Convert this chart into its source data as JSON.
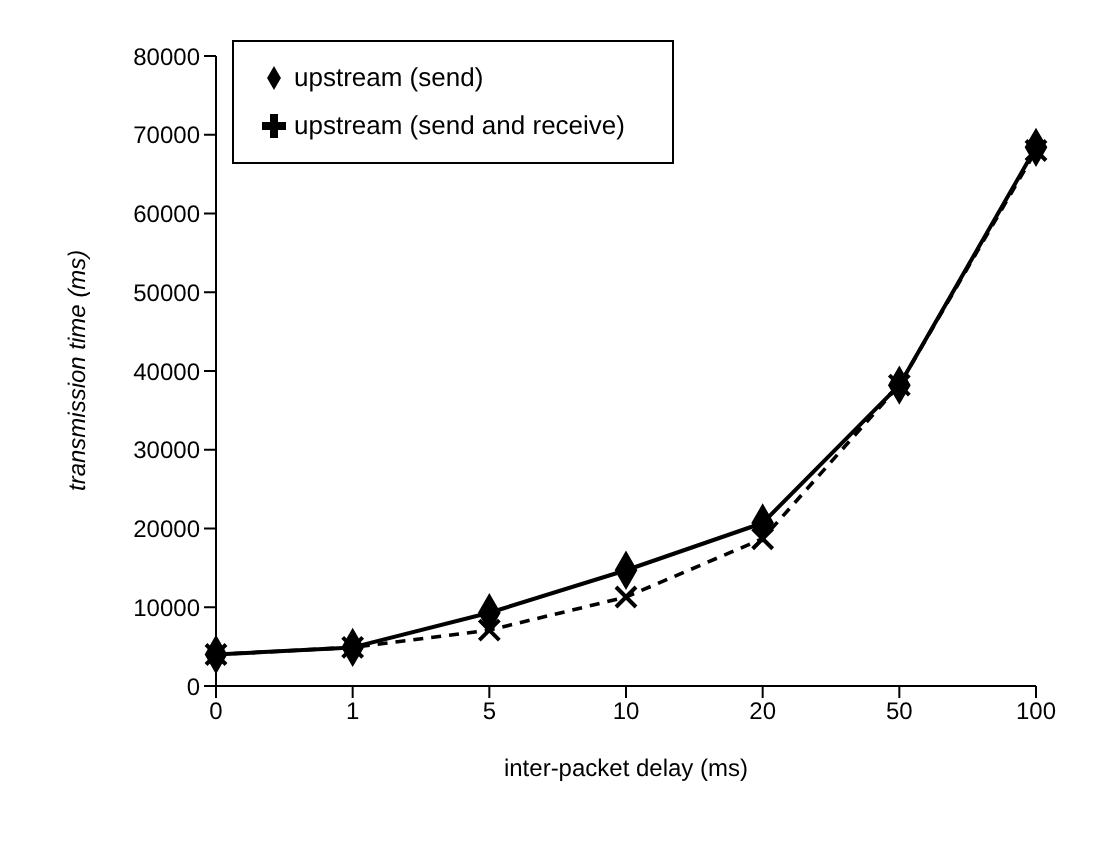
{
  "chart_data": {
    "type": "line",
    "xlabel": "inter-packet delay (ms)",
    "ylabel": "transmission time (ms)",
    "categories": [
      "0",
      "1",
      "5",
      "10",
      "20",
      "50",
      "100"
    ],
    "ylim": [
      0,
      80000
    ],
    "yticks": [
      0,
      10000,
      20000,
      30000,
      40000,
      50000,
      60000,
      70000,
      80000
    ],
    "grid": false,
    "legend": "top left",
    "series": [
      {
        "name": "upstream (send)",
        "color": "#000000",
        "marker": "diamond",
        "line_style": "solid",
        "values": [
          4000,
          4900,
          9300,
          14700,
          20700,
          38200,
          68400
        ]
      },
      {
        "name": "upstream (send and receive)",
        "color": "#000000",
        "marker": "cross",
        "line_style": "dashed",
        "values": [
          4000,
          4900,
          7100,
          11300,
          18700,
          38200,
          68000
        ]
      }
    ]
  }
}
